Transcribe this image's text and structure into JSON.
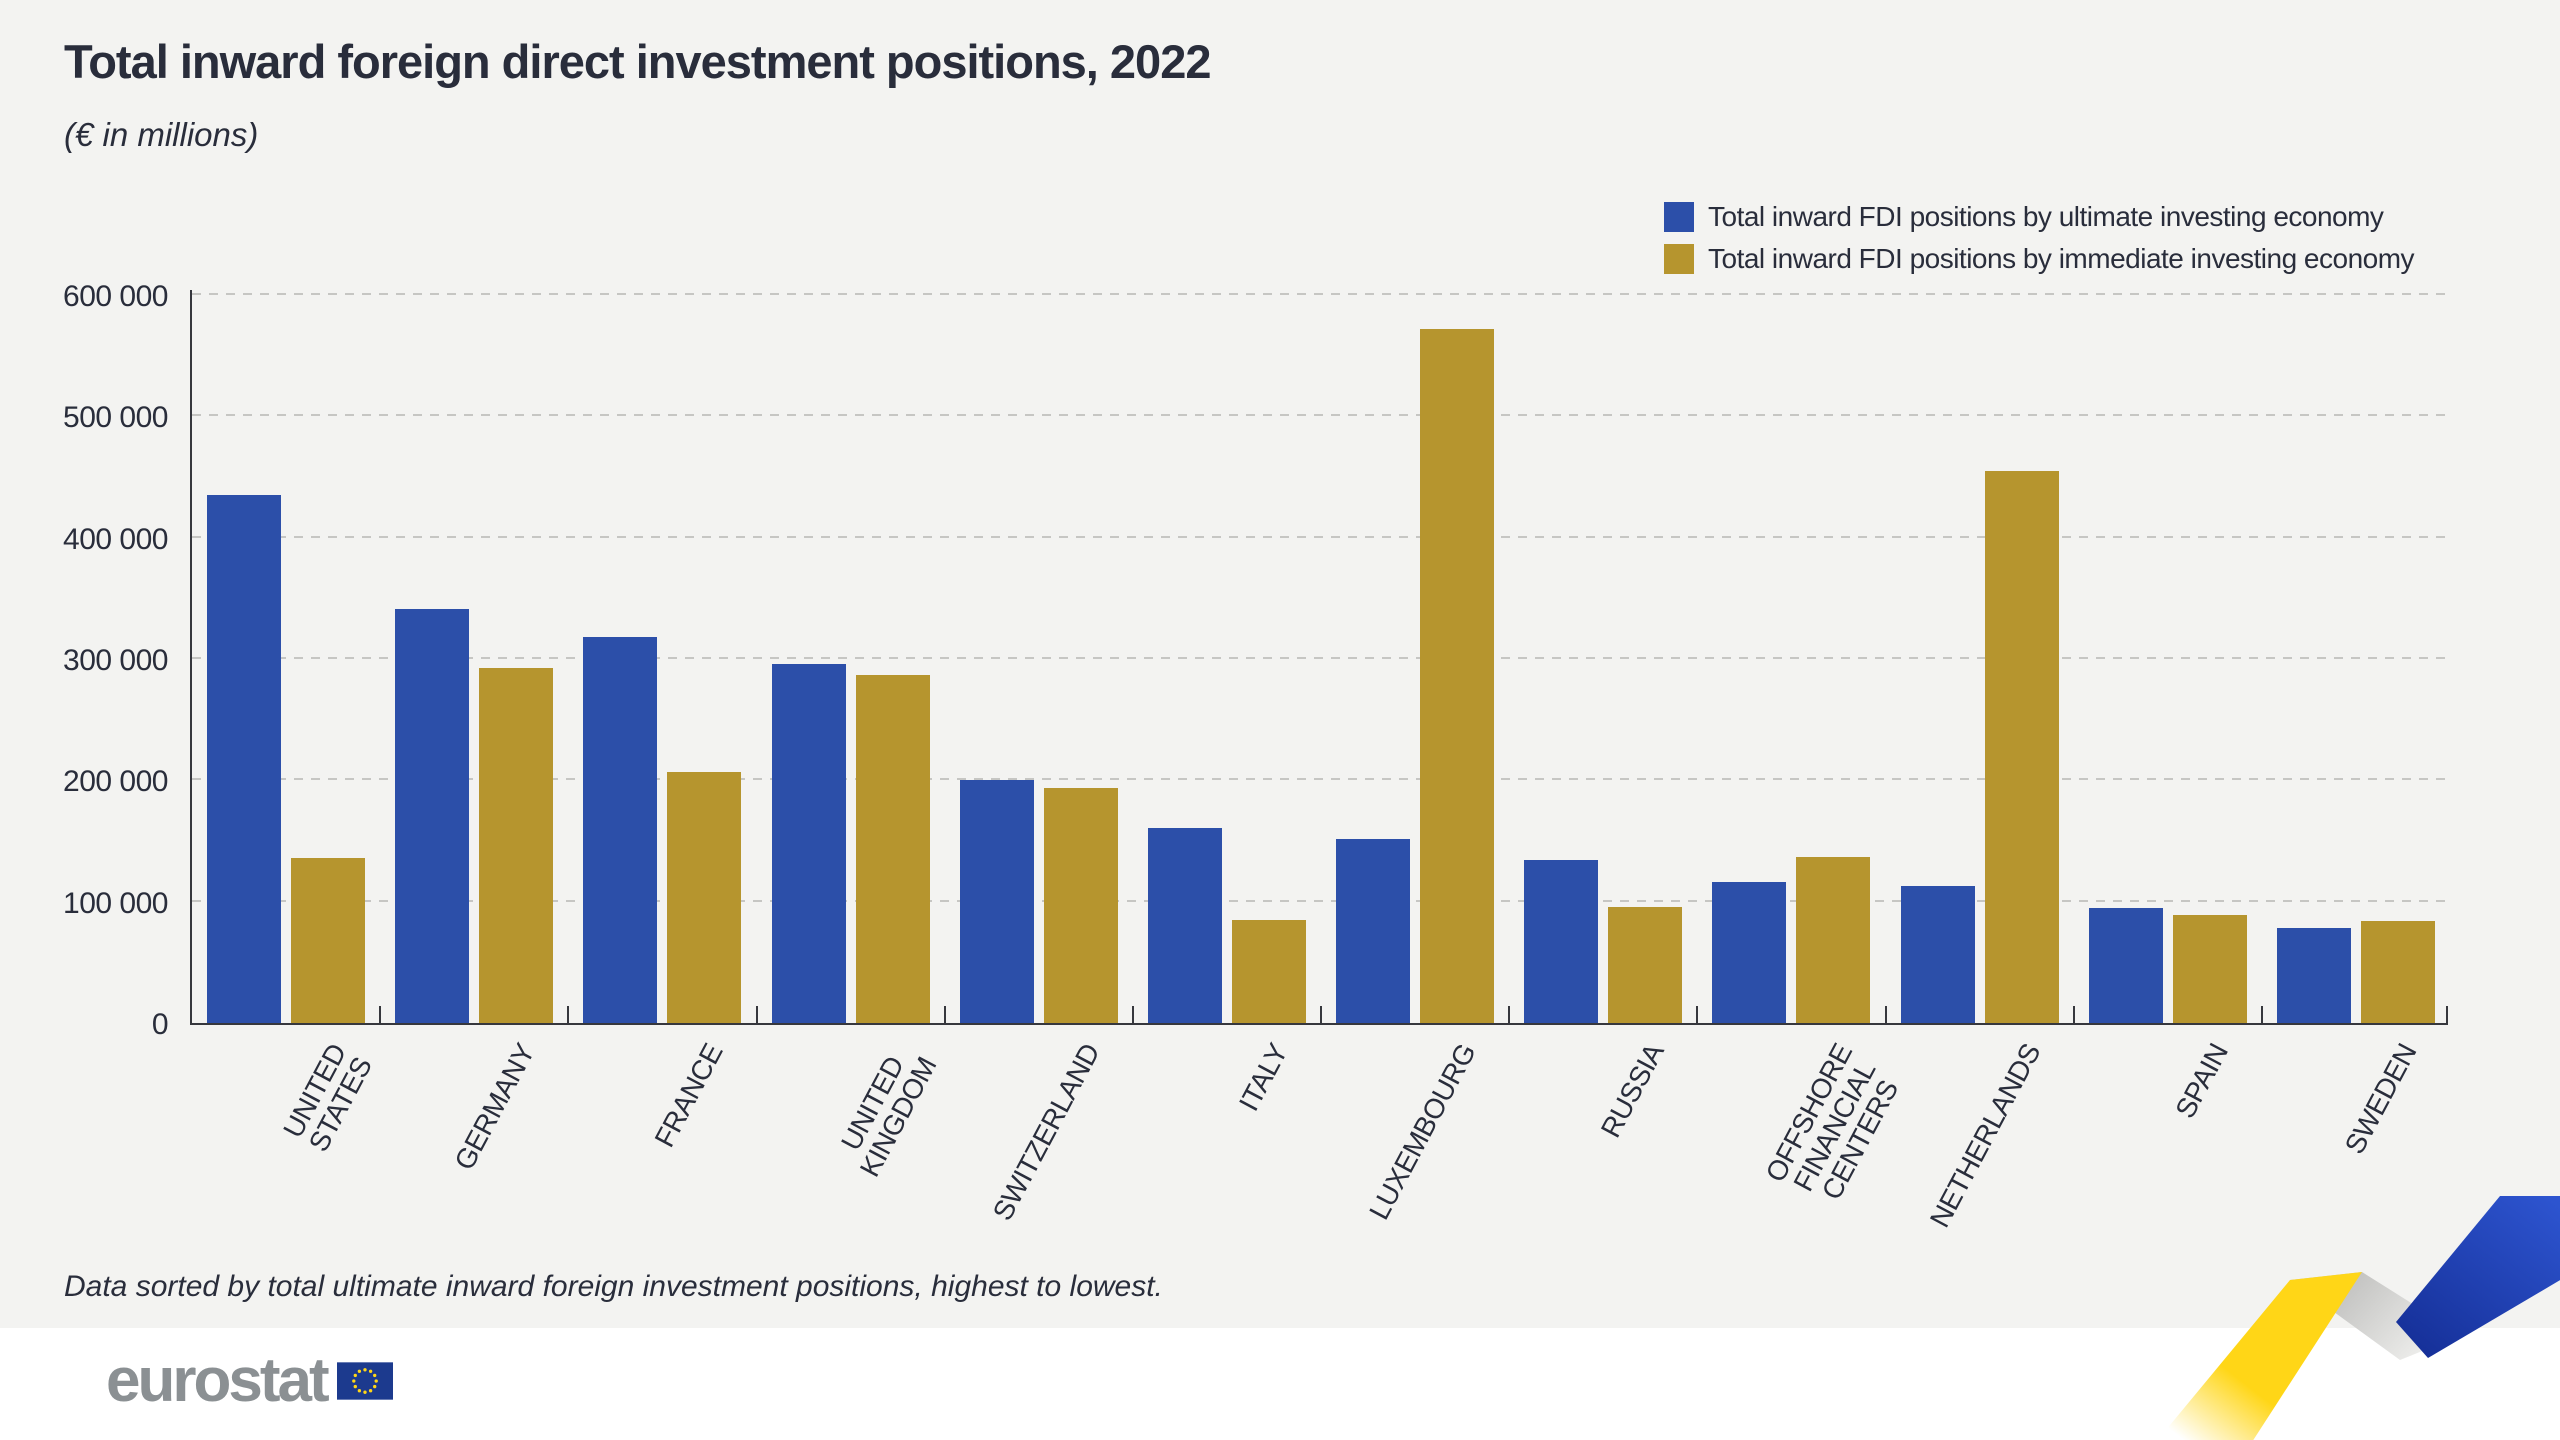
{
  "title": "Total inward foreign direct investment positions, 2022",
  "subtitle": "(€ in millions)",
  "legend": [
    {
      "label": "Total inward FDI positions by ultimate investing economy",
      "color": "#2c4fa9"
    },
    {
      "label": "Total inward FDI positions by immediate investing economy",
      "color": "#b6952e"
    }
  ],
  "footnote": "Data sorted by total ultimate inward foreign investment positions, highest to lowest.",
  "logo": {
    "text": "eurostat"
  },
  "colors": {
    "background": "#f3f3f1",
    "text": "#292d3b",
    "grid": "#c6c6c3",
    "axis": "#36373d",
    "series_ultimate": "#2c4fa9",
    "series_immediate": "#b6952e",
    "logo_gray": "#8b9093",
    "flag_blue": "#1c3a8e",
    "star_yellow": "#ffd617"
  },
  "chart_data": {
    "type": "bar",
    "title": "Total inward foreign direct investment positions, 2022",
    "unit_label": "(€ in millions)",
    "xlabel": "",
    "ylabel": "€ million",
    "ylim": [
      0,
      600000
    ],
    "grid": "horizontal dashed",
    "legend_position": "top-right",
    "sort_note": "Data sorted by total ultimate inward foreign investment positions, highest to lowest.",
    "categories": [
      {
        "name": "UNITED STATES",
        "lines": [
          "UNITED",
          "STATES"
        ]
      },
      {
        "name": "GERMANY",
        "lines": [
          "GERMANY"
        ]
      },
      {
        "name": "FRANCE",
        "lines": [
          "FRANCE"
        ]
      },
      {
        "name": "UNITED KINGDOM",
        "lines": [
          "UNITED",
          "KINGDOM"
        ]
      },
      {
        "name": "SWITZERLAND",
        "lines": [
          "SWITZERLAND"
        ]
      },
      {
        "name": "ITALY",
        "lines": [
          "ITALY"
        ]
      },
      {
        "name": "LUXEMBOURG",
        "lines": [
          "LUXEMBOURG"
        ]
      },
      {
        "name": "RUSSIA",
        "lines": [
          "RUSSIA"
        ]
      },
      {
        "name": "OFFSHORE FINANCIAL CENTERS",
        "lines": [
          "OFFSHORE",
          "FINANCIAL",
          "CENTERS"
        ]
      },
      {
        "name": "NETHERLANDS",
        "lines": [
          "NETHERLANDS"
        ]
      },
      {
        "name": "SPAIN",
        "lines": [
          "SPAIN"
        ]
      },
      {
        "name": "SWEDEN",
        "lines": [
          "SWEDEN"
        ]
      }
    ],
    "series": [
      {
        "name": "Total inward FDI positions by ultimate investing economy",
        "color": "#2c4fa9",
        "values": [
          435000,
          341000,
          318000,
          296000,
          200000,
          161000,
          152000,
          134000,
          116000,
          113000,
          95000,
          78000
        ]
      },
      {
        "name": "Total inward FDI positions by immediate investing economy",
        "color": "#b6952e",
        "values": [
          136000,
          293000,
          207000,
          287000,
          194000,
          85000,
          572000,
          96000,
          137000,
          455000,
          89000,
          84000
        ]
      }
    ],
    "y_ticks": [
      {
        "value": 600000,
        "label": "600 000"
      },
      {
        "value": 500000,
        "label": "500 000"
      },
      {
        "value": 400000,
        "label": "400 000"
      },
      {
        "value": 300000,
        "label": "300 000"
      },
      {
        "value": 200000,
        "label": "200 000"
      },
      {
        "value": 100000,
        "label": "100 000"
      },
      {
        "value": 0,
        "label": "0"
      }
    ]
  }
}
